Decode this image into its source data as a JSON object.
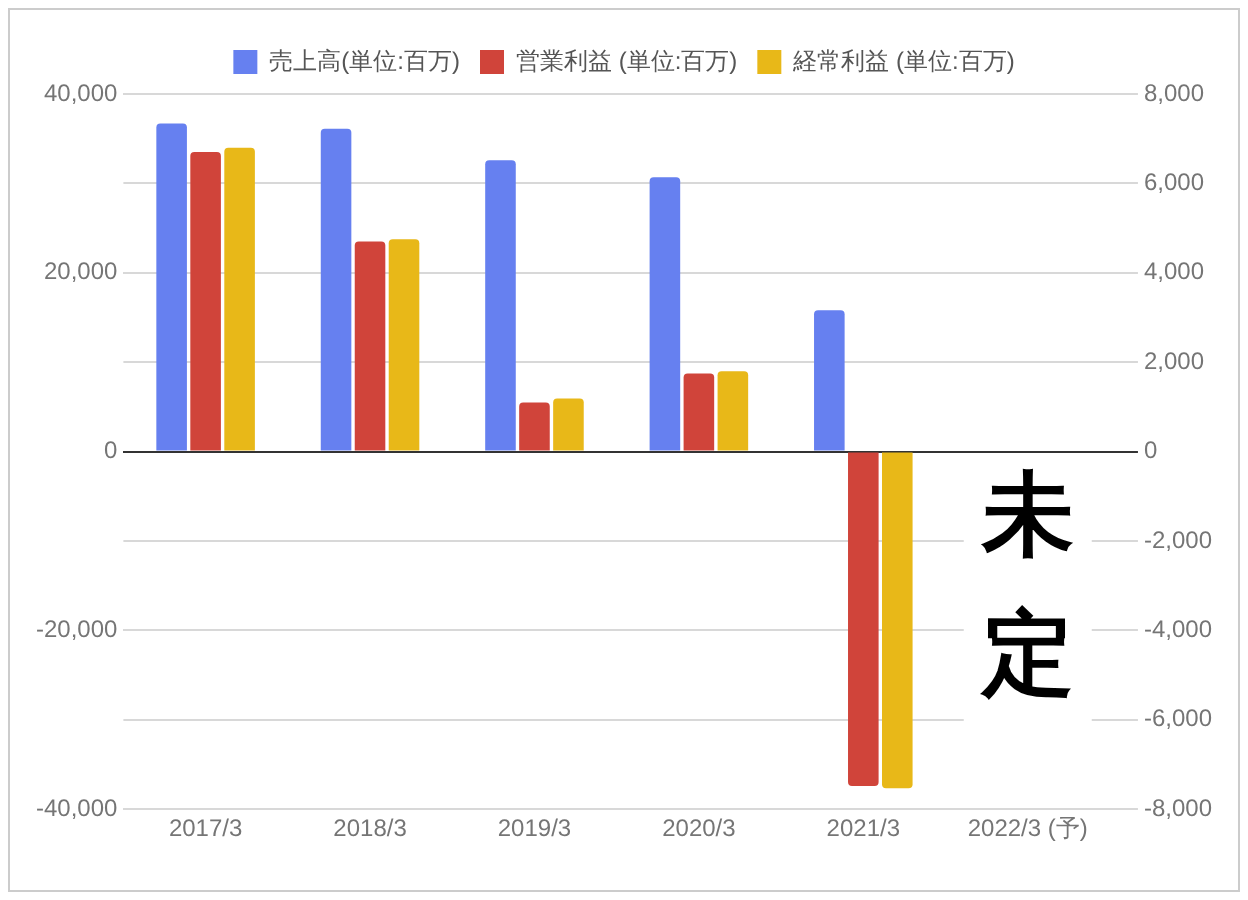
{
  "chart_data": {
    "type": "bar",
    "categories": [
      "2017/3",
      "2018/3",
      "2019/3",
      "2020/3",
      "2021/3",
      "2022/3 (予)"
    ],
    "series": [
      {
        "name": "売上高(単位:百万)",
        "color": "#6680f0",
        "values": [
          36700,
          36100,
          32600,
          30700,
          15800,
          null
        ]
      },
      {
        "name": "営業利益 (単位:百万)",
        "color": "#d0443a",
        "axis": "y2",
        "values": [
          6700,
          4700,
          1100,
          1750,
          -7480,
          null
        ]
      },
      {
        "name": "経常利益 (単位:百万)",
        "color": "#e8b818",
        "axis": "y2",
        "values": [
          6800,
          4750,
          1190,
          1800,
          -7530,
          null
        ]
      }
    ],
    "ylim": [
      -40000,
      40000
    ],
    "yticks": [
      {
        "value": -40000,
        "label": "-40,000"
      },
      {
        "value": -20000,
        "label": "-20,000"
      },
      0,
      {
        "value": 20000,
        "label": "20,000"
      },
      {
        "value": 40000,
        "label": "40,000"
      }
    ],
    "y2lim": [
      -8000,
      8000
    ],
    "y2ticks": [
      {
        "value": -8000,
        "label": "-8,000"
      },
      {
        "value": -6000,
        "label": "-6,000"
      },
      {
        "value": -4000,
        "label": "-4,000"
      },
      {
        "value": -2000,
        "label": "-2,000"
      },
      0,
      {
        "value": 2000,
        "label": "2,000"
      },
      {
        "value": 4000,
        "label": "4,000"
      },
      {
        "value": 6000,
        "label": "6,000"
      },
      {
        "value": 8000,
        "label": "8,000"
      }
    ],
    "annotations": [
      "未定"
    ],
    "grid": "y",
    "legend": "top"
  }
}
